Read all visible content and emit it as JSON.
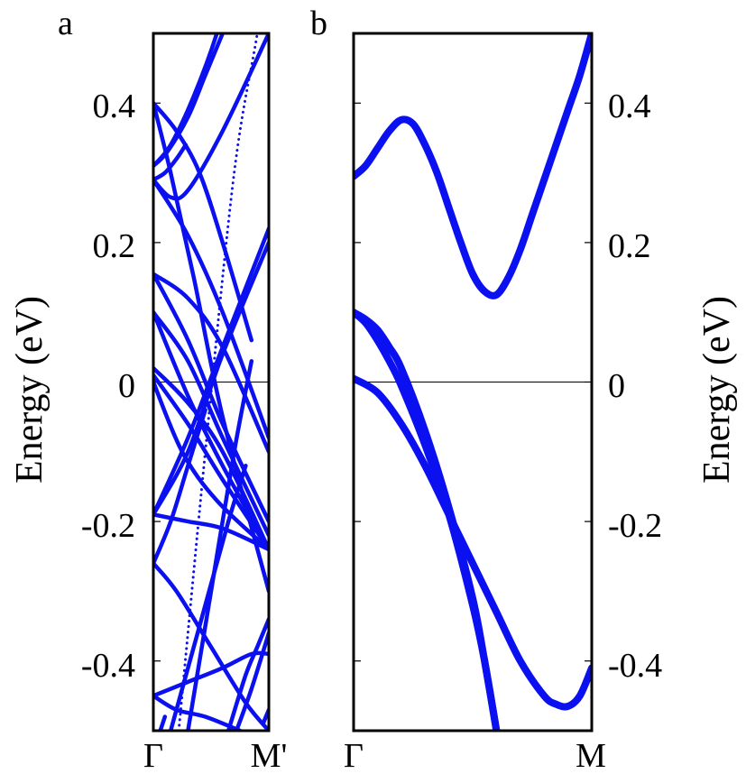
{
  "colors": {
    "band": "#0b10f0",
    "axis": "#000000"
  },
  "chart_data": [
    {
      "type": "line",
      "panel_label": "a",
      "ylabel": "Energy (eV)",
      "ylim": [
        -0.5,
        0.5
      ],
      "xlim": [
        0,
        1
      ],
      "x_tick_labels": [
        "Γ",
        "M'"
      ],
      "y_ticks": [
        0.4,
        0.2,
        0,
        -0.2,
        -0.4
      ],
      "y_tick_labels": [
        "0.4",
        "0.2",
        "0",
        "-0.2",
        "-0.4"
      ],
      "zero_line": true,
      "series": [
        {
          "x": [
            0,
            0.15,
            0.35,
            0.6,
            1.0
          ],
          "y": [
            0.4,
            0.3,
            0.15,
            -0.05,
            -0.3
          ]
        },
        {
          "x": [
            0,
            0.2,
            0.4,
            0.6,
            0.85
          ],
          "y": [
            0.4,
            0.36,
            0.3,
            0.2,
            0.06
          ]
        },
        {
          "x": [
            0,
            0.15,
            0.35,
            0.55,
            0.75
          ],
          "y": [
            0.31,
            0.34,
            0.41,
            0.5,
            0.62
          ]
        },
        {
          "x": [
            0,
            0.12,
            0.3,
            0.45,
            0.6
          ],
          "y": [
            0.31,
            0.33,
            0.38,
            0.44,
            0.5
          ]
        },
        {
          "x": [
            0,
            0.15,
            0.3,
            0.6,
            1.0
          ],
          "y": [
            0.29,
            0.265,
            0.275,
            0.36,
            0.5
          ]
        },
        {
          "x": [
            0,
            0.1,
            0.2,
            0.28
          ],
          "y": [
            0.29,
            0.3,
            0.32,
            0.34
          ]
        },
        {
          "x": [
            0,
            0.3,
            0.6,
            1.0
          ],
          "y": [
            0.29,
            0.21,
            0.1,
            -0.08
          ]
        },
        {
          "x": [
            0,
            0.3,
            0.6,
            1.0
          ],
          "y": [
            0.155,
            0.12,
            0.05,
            -0.1
          ]
        },
        {
          "x": [
            0,
            0.3,
            0.6,
            1.0
          ],
          "y": [
            0.155,
            0.06,
            -0.06,
            -0.2
          ]
        },
        {
          "x": [
            0,
            0.3,
            0.6,
            1.0
          ],
          "y": [
            0.1,
            0.03,
            -0.08,
            -0.22
          ]
        },
        {
          "x": [
            0,
            0.3,
            0.6,
            1.0
          ],
          "y": [
            0.1,
            -0.02,
            -0.12,
            -0.24
          ]
        },
        {
          "x": [
            0,
            0.3,
            0.6,
            1.0
          ],
          "y": [
            0.02,
            -0.03,
            -0.1,
            -0.24
          ]
        },
        {
          "x": [
            0,
            0.3,
            0.6,
            1.0
          ],
          "y": [
            0.01,
            -0.06,
            -0.14,
            -0.24
          ]
        },
        {
          "x": [
            0,
            0.25,
            0.55,
            1.0
          ],
          "y": [
            0.0,
            -0.1,
            -0.17,
            -0.24
          ]
        },
        {
          "x": [
            0,
            0.3,
            0.6,
            1.0
          ],
          "y": [
            -0.19,
            -0.08,
            0.05,
            0.22
          ]
        },
        {
          "x": [
            0,
            0.3,
            0.6,
            1.0
          ],
          "y": [
            -0.19,
            -0.1,
            0.04,
            0.2
          ]
        },
        {
          "x": [
            0,
            0.3,
            0.6,
            1.0
          ],
          "y": [
            -0.19,
            -0.2,
            -0.21,
            -0.24
          ]
        },
        {
          "x": [
            0,
            0.2,
            0.5,
            0.8,
            1.0
          ],
          "y": [
            -0.26,
            -0.3,
            -0.38,
            -0.46,
            -0.5
          ]
        },
        {
          "x": [
            0,
            0.15,
            0.3,
            0.45
          ],
          "y": [
            -0.26,
            -0.2,
            -0.12,
            -0.04
          ]
        },
        {
          "x": [
            0.15,
            0.4,
            0.65,
            0.8
          ],
          "y": [
            -0.5,
            -0.35,
            -0.2,
            -0.12
          ]
        },
        {
          "x": [
            0.3,
            0.5,
            0.7,
            0.85
          ],
          "y": [
            -0.5,
            -0.3,
            -0.1,
            0.03
          ]
        },
        {
          "x": [
            0,
            0.3,
            0.6,
            0.85,
            1.0
          ],
          "y": [
            -0.45,
            -0.43,
            -0.41,
            -0.39,
            -0.39
          ]
        },
        {
          "x": [
            0,
            0.2,
            0.45,
            0.75
          ],
          "y": [
            -0.45,
            -0.47,
            -0.48,
            -0.5
          ]
        },
        {
          "x": [
            0.65,
            0.8,
            0.9,
            1.0
          ],
          "y": [
            -0.5,
            -0.42,
            -0.38,
            -0.34
          ]
        },
        {
          "x": [
            0.72,
            0.85,
            1.0
          ],
          "y": [
            -0.5,
            -0.44,
            -0.36
          ]
        },
        {
          "x": [
            0.95,
            1.0
          ],
          "y": [
            -0.49,
            -0.47
          ]
        },
        {
          "x": [
            0.06,
            0.1
          ],
          "y": [
            -0.5,
            -0.48
          ]
        },
        {
          "x": [
            0.22,
            0.45,
            0.7,
            0.9,
            1.0
          ],
          "y": [
            -0.5,
            -0.1,
            0.3,
            0.5,
            0.62
          ],
          "dotted": true
        }
      ]
    },
    {
      "type": "line",
      "panel_label": "b",
      "ylabel": "Energy (eV)",
      "ylim": [
        -0.5,
        0.5
      ],
      "xlim": [
        0,
        1
      ],
      "x_tick_labels": [
        "Γ",
        "M"
      ],
      "y_ticks": [
        0.4,
        0.2,
        0,
        -0.2,
        -0.4
      ],
      "y_tick_labels": [
        "0.4",
        "0.2",
        "0",
        "-0.2",
        "-0.4"
      ],
      "zero_line": true,
      "series": [
        {
          "x": [
            0,
            0.05,
            0.1,
            0.15,
            0.2,
            0.25,
            0.3,
            0.35,
            0.4,
            0.45,
            0.5,
            0.55,
            0.6,
            0.65,
            0.7,
            0.75,
            0.8,
            0.85,
            0.9,
            0.95,
            1.0
          ],
          "y": [
            0.295,
            0.31,
            0.335,
            0.36,
            0.376,
            0.37,
            0.34,
            0.3,
            0.25,
            0.2,
            0.155,
            0.13,
            0.125,
            0.15,
            0.19,
            0.24,
            0.29,
            0.34,
            0.39,
            0.44,
            0.5
          ]
        },
        {
          "x": [
            0,
            0.05,
            0.1,
            0.15,
            0.2,
            0.3,
            0.4,
            0.5,
            0.55,
            0.6
          ],
          "y": [
            0.1,
            0.09,
            0.075,
            0.05,
            0.02,
            -0.07,
            -0.18,
            -0.31,
            -0.4,
            -0.5
          ]
        },
        {
          "x": [
            0,
            0.05,
            0.1,
            0.15,
            0.2,
            0.3,
            0.4,
            0.5,
            0.55,
            0.6
          ],
          "y": [
            0.1,
            0.085,
            0.06,
            0.03,
            -0.005,
            -0.09,
            -0.19,
            -0.32,
            -0.4,
            -0.5
          ]
        },
        {
          "x": [
            0,
            0.1,
            0.2,
            0.3,
            0.4,
            0.5,
            0.6,
            0.7,
            0.8,
            0.85,
            0.9,
            0.95,
            1.0
          ],
          "y": [
            0.005,
            -0.015,
            -0.06,
            -0.12,
            -0.19,
            -0.26,
            -0.33,
            -0.4,
            -0.45,
            -0.462,
            -0.465,
            -0.45,
            -0.41
          ]
        }
      ]
    }
  ]
}
